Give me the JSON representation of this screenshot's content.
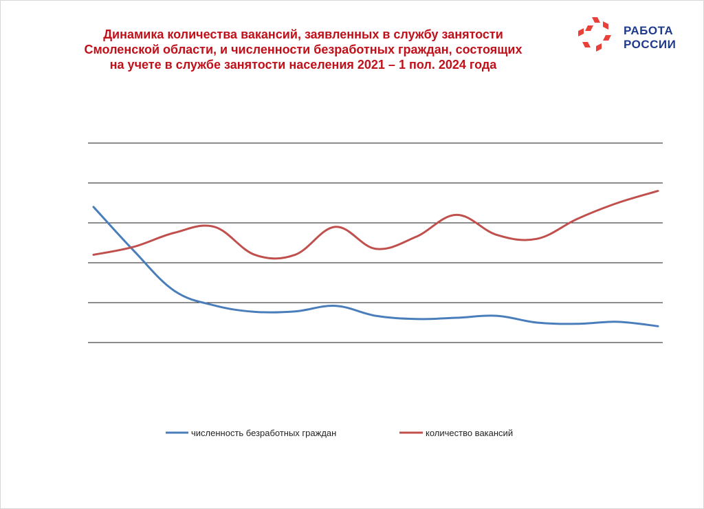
{
  "title_lines": [
    "Динамика количества вакансий, заявленных в службу занятости",
    "Смоленской области, и численности безработных граждан, состоящих",
    "на учете в службе занятости населения 2021 – 1 пол. 2024 года"
  ],
  "logo": {
    "line1": "РАБОТА",
    "line2": "РОССИИ",
    "icon": "star-arrows-icon",
    "color": "#e8403a",
    "text_color": "#1f3a8a"
  },
  "chart_data": {
    "type": "line",
    "title": "",
    "xlabel": "",
    "ylabel": "",
    "ylim": [
      0,
      5
    ],
    "gridlines": 6,
    "x": [
      0,
      1,
      2,
      3,
      4,
      5,
      6,
      7,
      8,
      9,
      10,
      11,
      12,
      13,
      14
    ],
    "series": [
      {
        "name": "численность безработных граждан",
        "color": "#4a7ebb",
        "values": [
          3.4,
          2.3,
          1.3,
          0.93,
          0.77,
          0.78,
          0.92,
          0.67,
          0.59,
          0.62,
          0.67,
          0.5,
          0.47,
          0.52,
          0.41
        ]
      },
      {
        "name": "количество вакансий",
        "color": "#c0504d",
        "values": [
          2.2,
          2.4,
          2.75,
          2.9,
          2.2,
          2.2,
          2.9,
          2.35,
          2.65,
          3.2,
          2.7,
          2.6,
          3.1,
          3.5,
          3.8
        ]
      }
    ],
    "legend": "bottom",
    "grid": true
  }
}
